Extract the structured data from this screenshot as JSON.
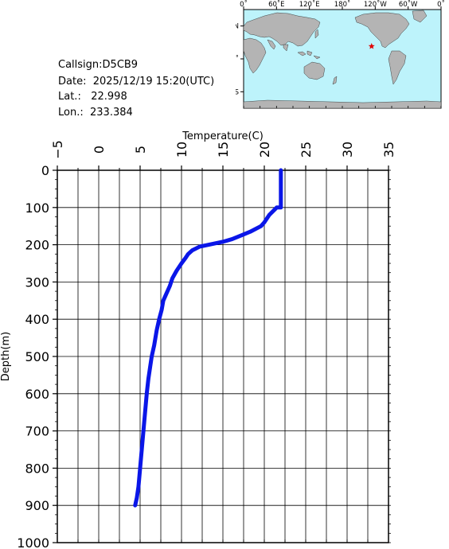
{
  "station": {
    "callsign_label": "Callsign:",
    "callsign": "D5CB9",
    "date_label": "Date:",
    "date": "2025/12/19 15:20(UTC)",
    "lat_label": "Lat.:",
    "lat": "22.998",
    "lon_label": "Lon.:",
    "lon": "233.384"
  },
  "map": {
    "lon_ticks": [
      "0˚",
      "60˚E",
      "120˚E",
      "180˚",
      "120˚W",
      "60˚W",
      "0˚"
    ],
    "lat_ticks": [
      "60˚N",
      "0˚",
      "60˚S"
    ],
    "ocean_color": "#bdf3fb",
    "land_color": "#b4b4b4",
    "marker_color": "#e00000",
    "marker_lat": 22.998,
    "marker_lon": 233.384
  },
  "chart_data": {
    "type": "line",
    "title": "",
    "xlabel": "Temperature(C)",
    "ylabel": "Depth(m)",
    "xlim": [
      -5,
      35
    ],
    "ylim": [
      1000,
      0
    ],
    "x_ticks": [
      -5,
      0,
      5,
      10,
      15,
      20,
      25,
      30,
      35
    ],
    "y_ticks": [
      0,
      100,
      200,
      300,
      400,
      500,
      600,
      700,
      800,
      900,
      1000
    ],
    "grid": true,
    "series_color": "#0a16e8",
    "series": [
      {
        "x": [
          22.0,
          22.0,
          22.0,
          22.0,
          21.5,
          20.6,
          20.0,
          19.6,
          18.3,
          17.2,
          16.1,
          15.0,
          13.3,
          12.2,
          11.3,
          10.8,
          10.5,
          10.0,
          9.4,
          8.9,
          8.6,
          8.2,
          7.8,
          7.6,
          7.3,
          7.0,
          6.7,
          6.4,
          6.2,
          6.0,
          5.8,
          5.6,
          5.4,
          5.2,
          5.0,
          4.8,
          4.6,
          4.4
        ],
        "y": [
          0,
          30,
          60,
          100,
          100,
          120,
          140,
          150,
          165,
          175,
          185,
          192,
          200,
          205,
          215,
          225,
          235,
          250,
          270,
          290,
          310,
          330,
          350,
          375,
          400,
          430,
          470,
          500,
          530,
          560,
          600,
          650,
          700,
          750,
          800,
          850,
          880,
          900
        ]
      }
    ]
  }
}
